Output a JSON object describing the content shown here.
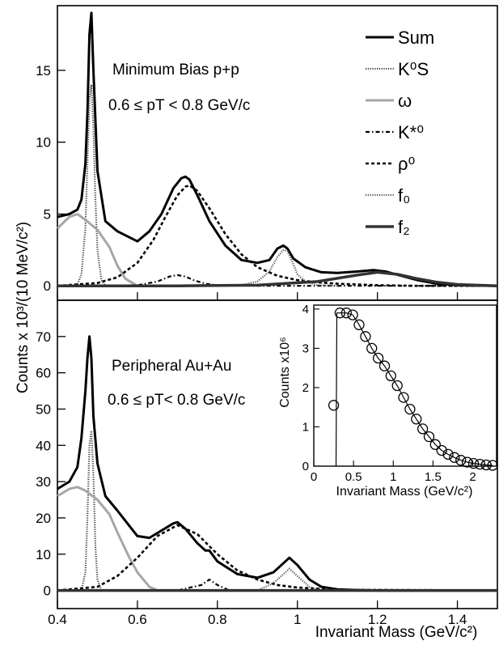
{
  "figure": {
    "x_axis_title": "Invariant Mass (GeV/c²)",
    "y_axis_title": "Counts x 10³/(10 MeV/c²)"
  },
  "legend": [
    {
      "label": "Sum",
      "color": "#000000",
      "dash": "solid",
      "width": 3
    },
    {
      "label": "K⁰S",
      "color": "#444444",
      "dash": "1.2 1.6",
      "width": 2.2
    },
    {
      "label": "ω",
      "color": "#a6a6a6",
      "dash": "solid",
      "width": 3
    },
    {
      "label": "K*⁰",
      "color": "#000000",
      "dash": "5 3 1.5 3",
      "width": 2.2
    },
    {
      "label": "ρ⁰",
      "color": "#000000",
      "dash": "4 3",
      "width": 2.6
    },
    {
      "label": "f₀",
      "color": "#555555",
      "dash": "1.2 1.6",
      "width": 2.2
    },
    {
      "label": "f₂",
      "color": "#333333",
      "dash": "solid",
      "width": 3.5
    }
  ],
  "panels": {
    "top": {
      "title": "Minimum Bias p+p",
      "subtitle": "0.6 ≤ pT < 0.8 GeV/c"
    },
    "bottom": {
      "title": "Peripheral Au+Au",
      "subtitle": "0.6 ≤ pT< 0.8 GeV/c"
    }
  },
  "inset": {
    "xlabel": "Invariant Mass (GeV/c²)",
    "ylabel": "Counts x10⁶"
  },
  "chart_data": [
    {
      "type": "line",
      "title": "Minimum Bias p+p",
      "xlim": [
        0.4,
        1.5
      ],
      "ylim": [
        -1,
        19.5
      ],
      "xticks": [
        0.4,
        0.6,
        0.8,
        1.0,
        1.2,
        1.4
      ],
      "yticks": [
        0,
        5,
        10,
        15
      ],
      "series": [
        {
          "name": "Sum",
          "x": [
            0.4,
            0.43,
            0.45,
            0.46,
            0.47,
            0.475,
            0.48,
            0.485,
            0.49,
            0.5,
            0.52,
            0.55,
            0.6,
            0.63,
            0.66,
            0.69,
            0.71,
            0.72,
            0.73,
            0.75,
            0.78,
            0.82,
            0.86,
            0.9,
            0.93,
            0.95,
            0.965,
            0.975,
            0.99,
            1.02,
            1.06,
            1.1,
            1.15,
            1.19,
            1.22,
            1.26,
            1.3,
            1.35,
            1.4,
            1.45,
            1.5
          ],
          "y": [
            4.8,
            5.0,
            5.3,
            6.0,
            8.5,
            12.0,
            17.5,
            19.0,
            15.0,
            8.0,
            4.5,
            3.8,
            3.1,
            3.8,
            5.0,
            6.8,
            7.5,
            7.6,
            7.4,
            6.3,
            4.5,
            2.8,
            1.8,
            1.6,
            1.8,
            2.6,
            2.8,
            2.6,
            1.9,
            1.3,
            0.95,
            0.9,
            1.0,
            1.1,
            1.0,
            0.7,
            0.4,
            0.15,
            0.05,
            0.02,
            0.0
          ]
        },
        {
          "name": "K⁰S",
          "x": [
            0.44,
            0.45,
            0.46,
            0.47,
            0.475,
            0.48,
            0.485,
            0.49,
            0.495,
            0.5,
            0.51,
            0.52
          ],
          "y": [
            0.0,
            0.1,
            0.8,
            4.0,
            8.5,
            13.0,
            14.0,
            11.0,
            6.0,
            2.5,
            0.4,
            0.0
          ]
        },
        {
          "name": "ω",
          "x": [
            0.4,
            0.43,
            0.45,
            0.47,
            0.5,
            0.53,
            0.55,
            0.57,
            0.6
          ],
          "y": [
            4.0,
            4.8,
            5.0,
            4.6,
            3.9,
            2.7,
            1.4,
            0.5,
            0.0
          ]
        },
        {
          "name": "K*⁰",
          "x": [
            0.4,
            0.5,
            0.6,
            0.65,
            0.68,
            0.7,
            0.72,
            0.74,
            0.77,
            0.8,
            0.9,
            1.0,
            1.5
          ],
          "y": [
            0.0,
            0.0,
            0.05,
            0.3,
            0.65,
            0.75,
            0.65,
            0.4,
            0.15,
            0.05,
            0.0,
            0.0,
            0.0
          ]
        },
        {
          "name": "ρ⁰",
          "x": [
            0.4,
            0.5,
            0.55,
            0.6,
            0.64,
            0.67,
            0.7,
            0.72,
            0.73,
            0.75,
            0.78,
            0.82,
            0.86,
            0.9,
            0.95,
            1.0,
            1.05,
            1.1,
            1.2,
            1.3,
            1.5
          ],
          "y": [
            0.0,
            0.2,
            0.6,
            1.6,
            3.2,
            4.8,
            6.3,
            6.9,
            7.0,
            6.6,
            5.4,
            3.6,
            2.2,
            1.3,
            0.7,
            0.4,
            0.25,
            0.15,
            0.05,
            0.0,
            0.0
          ]
        },
        {
          "name": "f₀",
          "x": [
            0.85,
            0.9,
            0.93,
            0.95,
            0.965,
            0.975,
            0.99,
            1.0,
            1.02,
            1.05,
            1.1
          ],
          "y": [
            0.0,
            0.3,
            1.0,
            2.0,
            2.5,
            2.4,
            1.5,
            0.8,
            0.3,
            0.05,
            0.0
          ]
        },
        {
          "name": "f₂",
          "x": [
            0.4,
            0.7,
            0.9,
            1.05,
            1.15,
            1.2,
            1.25,
            1.3,
            1.35,
            1.4,
            1.5
          ],
          "y": [
            0.0,
            0.0,
            0.05,
            0.3,
            0.75,
            0.95,
            0.8,
            0.5,
            0.25,
            0.1,
            0.0
          ]
        }
      ]
    },
    {
      "type": "line",
      "title": "Peripheral Au+Au",
      "xlim": [
        0.4,
        1.5
      ],
      "ylim": [
        -5,
        80
      ],
      "xticks": [
        0.4,
        0.6,
        0.8,
        1.0,
        1.2,
        1.4
      ],
      "yticks": [
        0,
        10,
        20,
        30,
        40,
        50,
        60,
        70
      ],
      "series": [
        {
          "name": "Sum",
          "x": [
            0.4,
            0.43,
            0.45,
            0.46,
            0.47,
            0.475,
            0.48,
            0.485,
            0.49,
            0.5,
            0.52,
            0.55,
            0.6,
            0.63,
            0.66,
            0.69,
            0.7,
            0.72,
            0.75,
            0.77,
            0.78,
            0.8,
            0.85,
            0.9,
            0.94,
            0.97,
            0.98,
            1.0,
            1.03,
            1.06,
            1.1,
            1.15,
            1.2,
            1.3,
            1.5
          ],
          "y": [
            28.0,
            30.0,
            34.0,
            42.0,
            55.0,
            64.0,
            70.0,
            64.0,
            48.0,
            35.0,
            26.0,
            22.0,
            15.0,
            14.5,
            16.5,
            18.5,
            18.8,
            17.0,
            13.0,
            11.0,
            11.0,
            8.0,
            4.5,
            3.5,
            5.0,
            8.0,
            9.0,
            7.0,
            3.0,
            1.0,
            0.3,
            0.1,
            0.0,
            0.0,
            0.0
          ]
        },
        {
          "name": "K⁰S",
          "x": [
            0.46,
            0.47,
            0.475,
            0.48,
            0.485,
            0.49,
            0.495,
            0.5,
            0.51
          ],
          "y": [
            0.0,
            5.0,
            20.0,
            40.0,
            44.0,
            32.0,
            12.0,
            3.0,
            0.0
          ]
        },
        {
          "name": "ω",
          "x": [
            0.4,
            0.43,
            0.45,
            0.47,
            0.5,
            0.53,
            0.55,
            0.58,
            0.6,
            0.63,
            0.65
          ],
          "y": [
            26.0,
            28.0,
            28.5,
            27.5,
            25.0,
            21.0,
            16.0,
            9.0,
            5.0,
            1.0,
            0.0
          ]
        },
        {
          "name": "K*⁰",
          "x": [
            0.4,
            0.6,
            0.7,
            0.76,
            0.78,
            0.8,
            0.83,
            1.5
          ],
          "y": [
            0.0,
            0.0,
            0.0,
            1.5,
            3.0,
            1.5,
            0.0,
            0.0
          ]
        },
        {
          "name": "ρ⁰",
          "x": [
            0.4,
            0.5,
            0.55,
            0.6,
            0.65,
            0.7,
            0.75,
            0.8,
            0.85,
            0.9,
            0.95,
            1.0,
            1.1,
            1.5
          ],
          "y": [
            0.0,
            1.0,
            4.0,
            9.0,
            15.0,
            18.0,
            15.5,
            10.0,
            5.5,
            3.0,
            1.5,
            0.8,
            0.2,
            0.0
          ]
        },
        {
          "name": "f₀",
          "x": [
            0.9,
            0.94,
            0.97,
            0.98,
            1.0,
            1.03,
            1.06
          ],
          "y": [
            0.0,
            2.0,
            5.0,
            6.0,
            4.0,
            1.0,
            0.0
          ]
        },
        {
          "name": "f₂",
          "x": [
            0.4,
            1.5
          ],
          "y": [
            0.0,
            0.0
          ]
        }
      ]
    },
    {
      "type": "scatter",
      "title": "",
      "xlabel": "Invariant Mass (GeV/c²)",
      "ylabel": "Counts x10⁶",
      "xlim": [
        0,
        2.3
      ],
      "ylim": [
        0,
        4.1
      ],
      "xticks": [
        0,
        0.5,
        1,
        1.5,
        2
      ],
      "yticks": [
        0,
        1,
        2,
        3,
        4
      ],
      "x": [
        0.25,
        0.33,
        0.41,
        0.49,
        0.57,
        0.65,
        0.73,
        0.81,
        0.89,
        0.97,
        1.05,
        1.13,
        1.21,
        1.29,
        1.37,
        1.45,
        1.53,
        1.61,
        1.69,
        1.77,
        1.85,
        1.93,
        2.01,
        2.09,
        2.17,
        2.25
      ],
      "y": [
        1.55,
        3.9,
        3.9,
        3.85,
        3.6,
        3.3,
        3.0,
        2.75,
        2.55,
        2.3,
        2.05,
        1.75,
        1.45,
        1.2,
        0.95,
        0.75,
        0.55,
        0.4,
        0.3,
        0.22,
        0.15,
        0.1,
        0.07,
        0.05,
        0.03,
        0.02
      ]
    }
  ]
}
